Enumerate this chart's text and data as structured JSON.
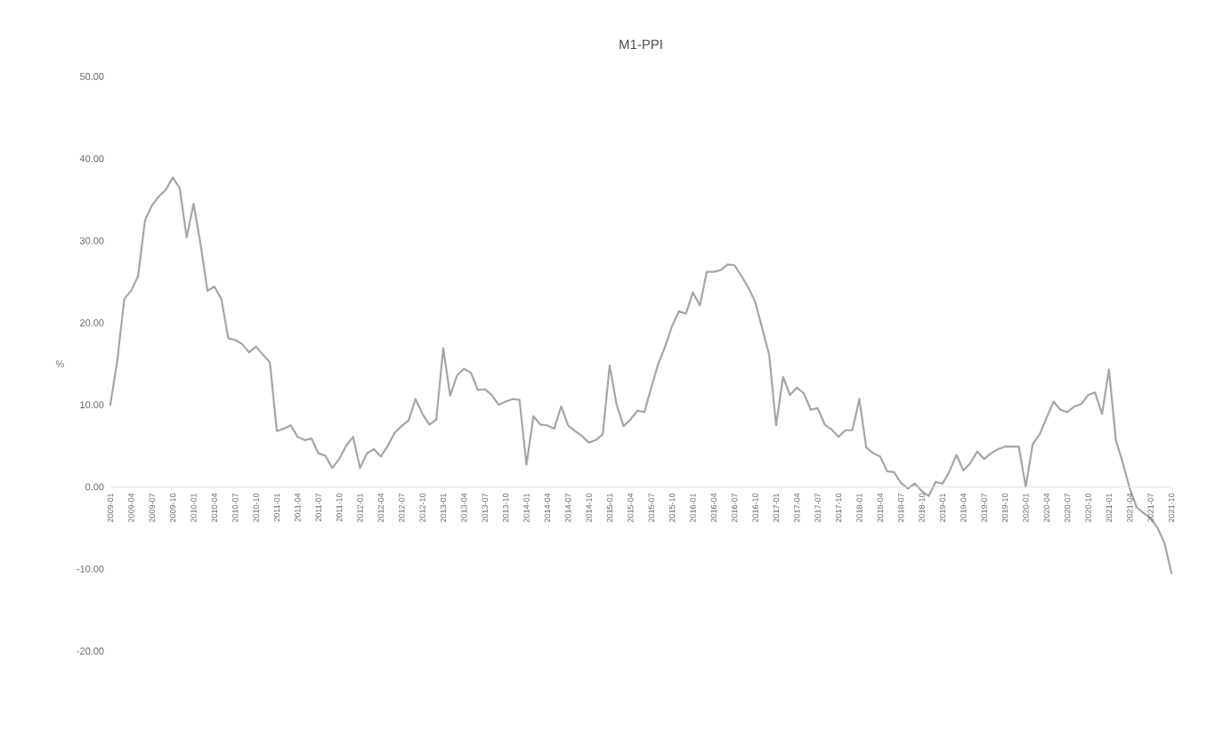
{
  "chart_data": {
    "type": "line",
    "title": "M1-PPI",
    "ylabel": "%",
    "categories": [
      "2009-01",
      null,
      null,
      "2009-04",
      null,
      null,
      "2009-07",
      null,
      null,
      "2009-10",
      null,
      null,
      "2010-01",
      null,
      null,
      "2010-04",
      null,
      null,
      "2010-07",
      null,
      null,
      "2010-10",
      null,
      null,
      "2011-01",
      null,
      null,
      "2011-04",
      null,
      null,
      "2011-07",
      null,
      null,
      "2011-10",
      null,
      null,
      "2012-01",
      null,
      null,
      "2012-04",
      null,
      null,
      "2012-07",
      null,
      null,
      "2012-10",
      null,
      null,
      "2013-01",
      null,
      null,
      "2013-04",
      null,
      null,
      "2013-07",
      null,
      null,
      "2013-10",
      null,
      null,
      "2014-01",
      null,
      null,
      "2014-04",
      null,
      null,
      "2014-07",
      null,
      null,
      "2014-10",
      null,
      null,
      "2015-01",
      null,
      null,
      "2015-04",
      null,
      null,
      "2015-07",
      null,
      null,
      "2015-10",
      null,
      null,
      "2016-01",
      null,
      null,
      "2016-04",
      null,
      null,
      "2016-07",
      null,
      null,
      "2016-10",
      null,
      null,
      "2017-01",
      null,
      null,
      "2017-04",
      null,
      null,
      "2017-07",
      null,
      null,
      "2017-10",
      null,
      null,
      "2018-01",
      null,
      null,
      "2018-04",
      null,
      null,
      "2018-07",
      null,
      null,
      "2018-10",
      null,
      null,
      "2019-01",
      null,
      null,
      "2019-04",
      null,
      null,
      "2019-07",
      null,
      null,
      "2019-10",
      null,
      null,
      "2020-01",
      null,
      null,
      "2020-04",
      null,
      null,
      "2020-07",
      null,
      null,
      "2020-10",
      null,
      null,
      "2021-01",
      null,
      null,
      "2021-04",
      null,
      null,
      "2021-07",
      null,
      null,
      "2021-10"
    ],
    "series": [
      {
        "color": "#a5a5a5",
        "values": [
          10.0,
          15.4,
          22.9,
          23.9,
          25.7,
          32.5,
          34.3,
          35.4,
          36.2,
          37.7,
          36.4,
          30.4,
          34.5,
          29.6,
          23.9,
          24.4,
          22.9,
          18.1,
          17.9,
          17.4,
          16.4,
          17.1,
          16.1,
          15.2,
          6.8,
          7.1,
          7.5,
          6.1,
          5.7,
          5.9,
          4.1,
          3.8,
          2.3,
          3.4,
          5.0,
          6.1,
          2.3,
          4.1,
          4.6,
          3.7,
          5.0,
          6.6,
          7.4,
          8.1,
          10.7,
          8.9,
          7.6,
          8.2,
          16.9,
          11.1,
          13.6,
          14.4,
          13.9,
          11.8,
          11.9,
          11.2,
          10.0,
          10.4,
          10.7,
          10.6,
          2.7,
          8.6,
          7.6,
          7.5,
          7.1,
          9.8,
          7.5,
          6.8,
          6.2,
          5.4,
          5.7,
          6.4,
          14.8,
          10.0,
          7.4,
          8.2,
          9.3,
          9.1,
          12.1,
          15.0,
          17.1,
          19.6,
          21.4,
          21.1,
          23.7,
          22.1,
          26.2,
          26.2,
          26.4,
          27.1,
          27.0,
          25.7,
          24.3,
          22.5,
          19.3,
          16.1,
          7.5,
          13.4,
          11.2,
          12.1,
          11.4,
          9.4,
          9.6,
          7.6,
          7.0,
          6.1,
          6.9,
          6.9,
          10.7,
          4.8,
          4.1,
          3.7,
          1.9,
          1.8,
          0.5,
          -0.2,
          0.4,
          -0.5,
          -1.1,
          0.6,
          0.4,
          1.9,
          3.9,
          2.0,
          2.9,
          4.3,
          3.4,
          4.1,
          4.6,
          4.9,
          4.9,
          4.9,
          0.0,
          5.2,
          6.4,
          8.4,
          10.4,
          9.4,
          9.1,
          9.8,
          10.1,
          11.2,
          11.5,
          8.9,
          14.3,
          5.7,
          2.9,
          -0.2,
          -2.5,
          -3.2,
          -3.8,
          -5.0,
          -6.8,
          -10.5
        ]
      }
    ],
    "ylim": [
      -20,
      50
    ],
    "yticks": [
      {
        "value": -20,
        "label": "-20.00"
      },
      {
        "value": -10,
        "label": "-10.00"
      },
      {
        "value": 0,
        "label": "0.00"
      },
      {
        "value": 10,
        "label": "10.00"
      },
      {
        "value": 20,
        "label": "20.00"
      },
      {
        "value": 30,
        "label": "30.00"
      },
      {
        "value": 40,
        "label": "40.00"
      },
      {
        "value": 50,
        "label": "50.00"
      }
    ]
  }
}
